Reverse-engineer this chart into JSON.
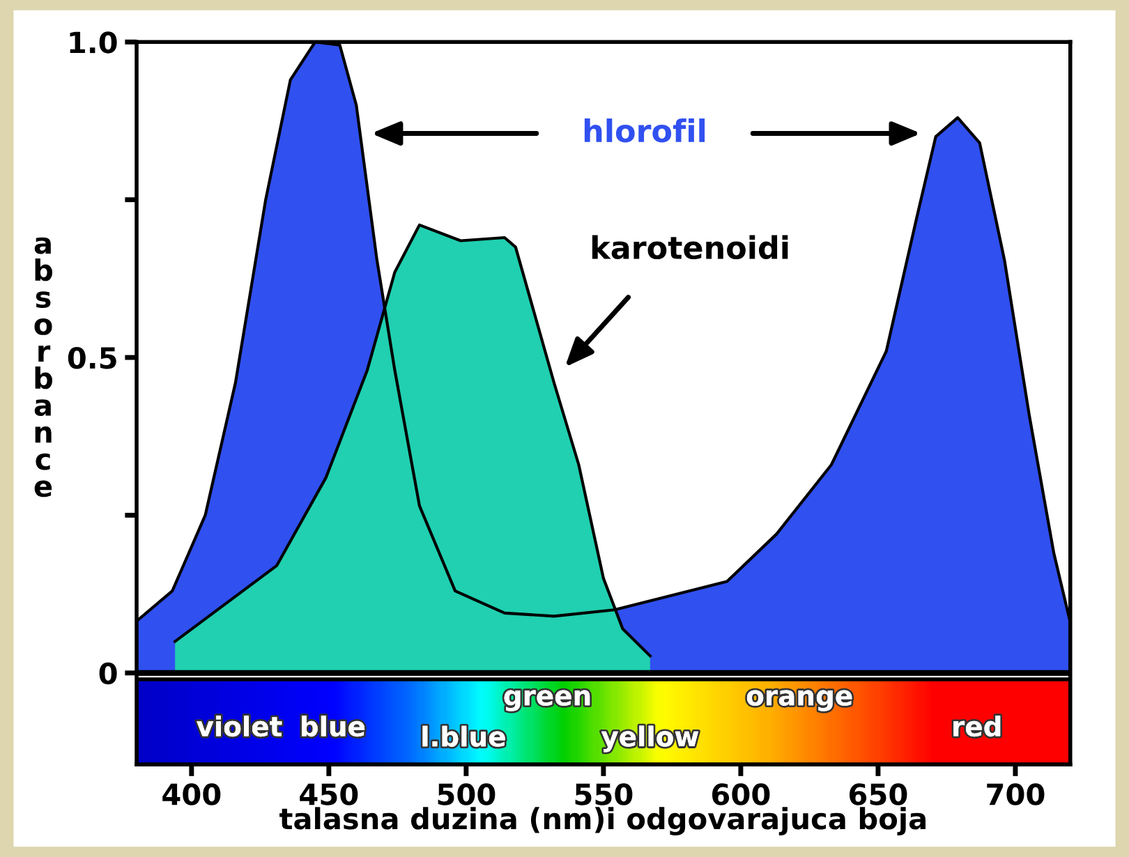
{
  "chart_data": {
    "type": "area",
    "xlabel": "talasna duzina (nm)i odgovarajuca boja",
    "ylabel": "absorbance",
    "xlim": [
      380,
      720
    ],
    "xticks": [
      400,
      450,
      500,
      550,
      600,
      650,
      700
    ],
    "ylim": [
      -0.145,
      1.0
    ],
    "yticks": [
      0,
      {
        "value": 0.25,
        "label": null
      },
      0.5,
      {
        "value": 0.75,
        "label": null
      },
      {
        "value": 1.0,
        "label": "1.0"
      }
    ],
    "ref_lines": [
      {
        "axis": "y",
        "value": 0
      }
    ],
    "grid": false,
    "legend": false,
    "series": [
      {
        "name": "hlorofil",
        "color": "#3050f0",
        "x": [
          380.5,
          393,
          405,
          416,
          427,
          436,
          445,
          454,
          460,
          467.5,
          474,
          483,
          496,
          514,
          532,
          554,
          595,
          613,
          633,
          653,
          664,
          671,
          679,
          687,
          696,
          705,
          714,
          720
        ],
        "values": [
          0.084,
          0.13,
          0.25,
          0.46,
          0.75,
          0.94,
          1.0,
          0.995,
          0.9,
          0.655,
          0.48,
          0.265,
          0.13,
          0.095,
          0.09,
          0.1,
          0.145,
          0.22,
          0.33,
          0.51,
          0.72,
          0.85,
          0.88,
          0.84,
          0.655,
          0.41,
          0.19,
          0.08
        ]
      },
      {
        "name": "karotenoidi",
        "color": "#20d0b0",
        "x": [
          394,
          431,
          449,
          464,
          474,
          483,
          498,
          514,
          518,
          532,
          541,
          550,
          557,
          567
        ],
        "values": [
          0.05,
          0.17,
          0.31,
          0.48,
          0.635,
          0.71,
          0.685,
          0.69,
          0.675,
          0.46,
          0.33,
          0.15,
          0.07,
          0.027
        ]
      }
    ],
    "annotations": [
      "violet",
      "blue",
      "l.blue",
      "green",
      "yellow",
      "orange",
      "red"
    ]
  }
}
